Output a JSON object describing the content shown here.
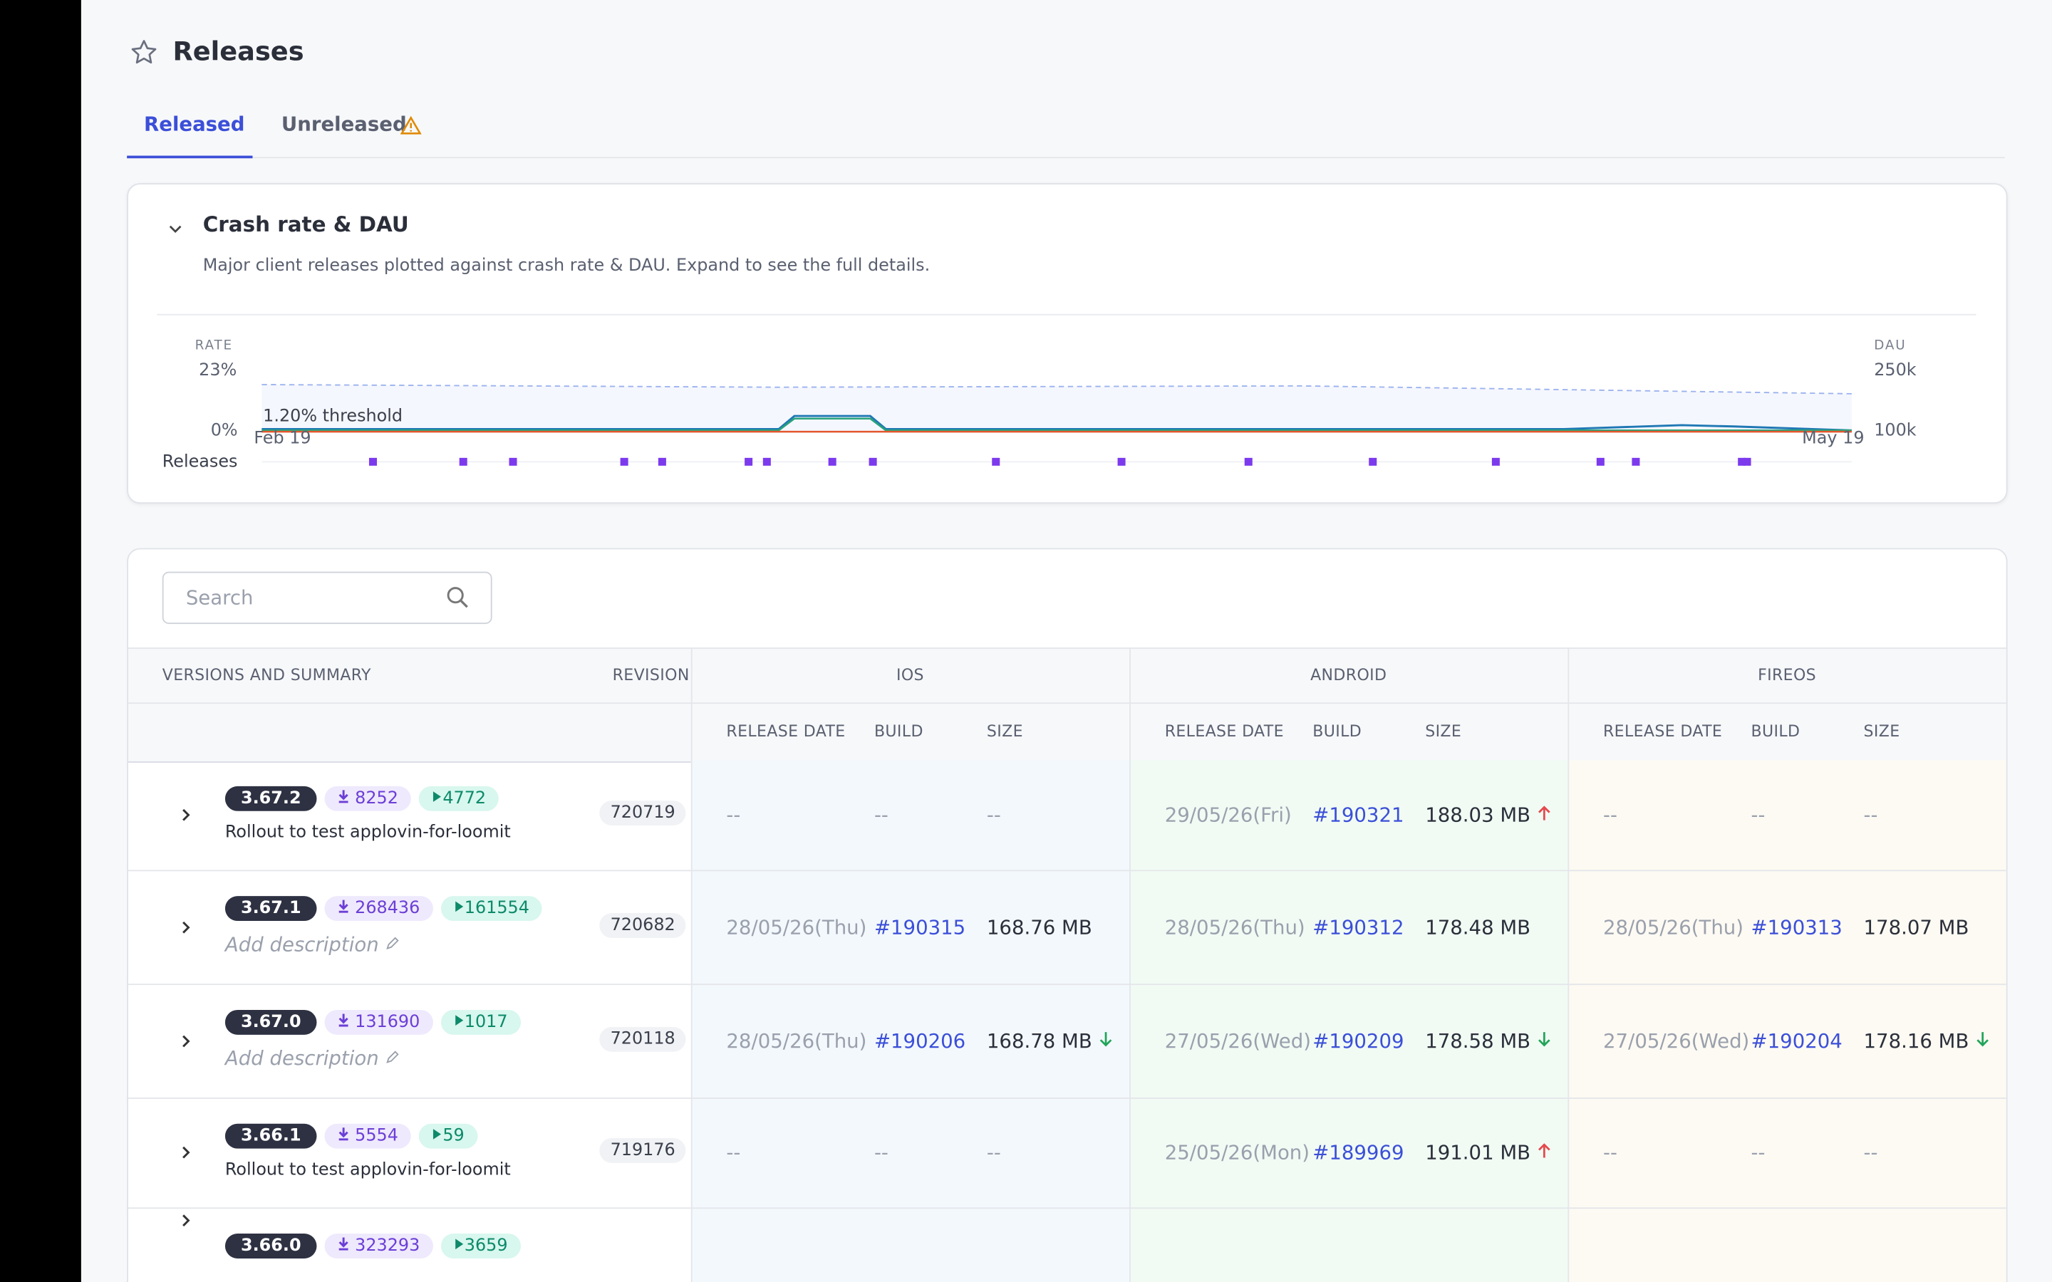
{
  "header": {
    "title": "Releases"
  },
  "tabs": [
    {
      "label": "Released",
      "active": true
    },
    {
      "label": "Unreleased",
      "warning": true
    }
  ],
  "chart_panel": {
    "title": "Crash rate & DAU",
    "description": "Major client releases plotted against crash rate & DAU. Expand to see the full details.",
    "left_axis_title": "RATE",
    "left_ticks": [
      "23%",
      "0%"
    ],
    "right_axis_title": "DAU",
    "right_ticks": [
      "250k",
      "100k"
    ],
    "threshold": "1.20% threshold",
    "x_start": "Feb 19",
    "x_end": "May 19",
    "releases_label": "Releases"
  },
  "search": {
    "placeholder": "Search"
  },
  "table": {
    "group_headers": [
      "VERSIONS AND SUMMARY",
      "REVISION",
      "IOS",
      "ANDROID",
      "FIREOS"
    ],
    "sub_headers": [
      "RELEASE DATE",
      "BUILD",
      "SIZE"
    ],
    "rows": [
      {
        "version": "3.67.2",
        "downloads": "8252",
        "plays": "4772",
        "summary": "Rollout to test applovin-for-loomit",
        "revision": "720719",
        "ios": {
          "date": "--",
          "build": "--",
          "size": "--"
        },
        "android": {
          "date": "29/05/26(Fri)",
          "build": "#190321",
          "size": "188.03 MB",
          "trend": "up"
        },
        "fireos": {
          "date": "--",
          "build": "--",
          "size": "--"
        }
      },
      {
        "version": "3.67.1",
        "downloads": "268436",
        "plays": "161554",
        "summary": "Add description",
        "placeholder": true,
        "revision": "720682",
        "ios": {
          "date": "28/05/26(Thu)",
          "build": "#190315",
          "size": "168.76 MB"
        },
        "android": {
          "date": "28/05/26(Thu)",
          "build": "#190312",
          "size": "178.48 MB"
        },
        "fireos": {
          "date": "28/05/26(Thu)",
          "build": "#190313",
          "size": "178.07 MB"
        }
      },
      {
        "version": "3.67.0",
        "downloads": "131690",
        "plays": "1017",
        "summary": "Add description",
        "placeholder": true,
        "revision": "720118",
        "ios": {
          "date": "28/05/26(Thu)",
          "build": "#190206",
          "size": "168.78 MB",
          "trend": "down"
        },
        "android": {
          "date": "27/05/26(Wed)",
          "build": "#190209",
          "size": "178.58 MB",
          "trend": "down"
        },
        "fireos": {
          "date": "27/05/26(Wed)",
          "build": "#190204",
          "size": "178.16 MB",
          "trend": "down"
        }
      },
      {
        "version": "3.66.1",
        "downloads": "5554",
        "plays": "59",
        "summary": "Rollout to test applovin-for-loomit",
        "revision": "719176",
        "ios": {
          "date": "--",
          "build": "--",
          "size": "--"
        },
        "android": {
          "date": "25/05/26(Mon)",
          "build": "#189969",
          "size": "191.01 MB",
          "trend": "up"
        },
        "fireos": {
          "date": "--",
          "build": "--",
          "size": "--"
        }
      },
      {
        "version": "3.66.0",
        "downloads": "323293",
        "plays": "3659"
      }
    ]
  }
}
